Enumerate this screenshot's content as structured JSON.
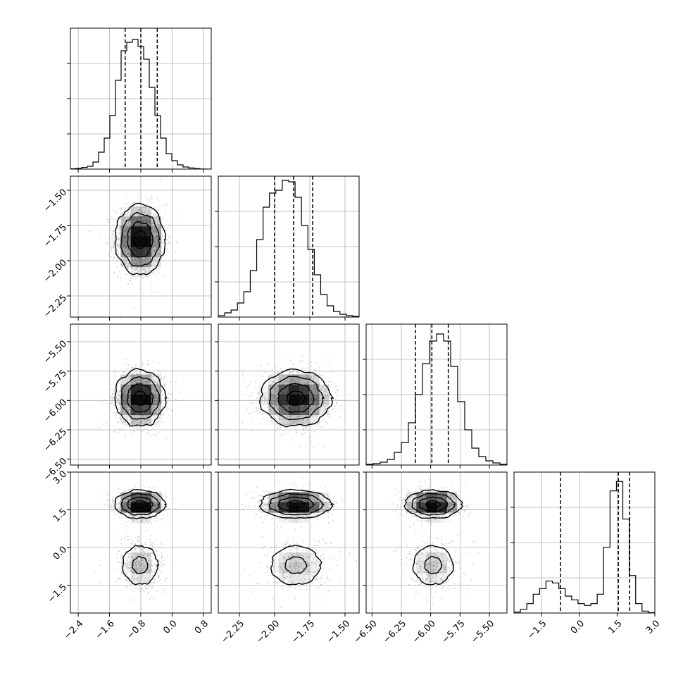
{
  "chart_data": {
    "type": "corner",
    "title": "",
    "parameters": [
      {
        "range": [
          -2.6,
          1.0
        ],
        "ticks": [
          -2.4,
          -1.6,
          -0.8,
          0.0,
          0.8
        ],
        "tick_labels": [
          "−2.4",
          "−1.6",
          "−0.8",
          "0.0",
          "0.8"
        ],
        "mean": -0.82,
        "sd": 0.32,
        "quantiles": [
          -1.2,
          -0.8,
          -0.38
        ],
        "hist_heights": [
          0.002,
          0.005,
          0.012,
          0.02,
          0.05,
          0.12,
          0.22,
          0.38,
          0.63,
          0.84,
          0.9,
          0.92,
          0.87,
          0.78,
          0.58,
          0.38,
          0.22,
          0.11,
          0.06,
          0.03,
          0.015,
          0.008,
          0.004,
          0.001,
          0.0
        ],
        "hist_ylim": 1.0
      },
      {
        "range": [
          -2.4,
          -1.4
        ],
        "ticks": [
          -2.25,
          -2.0,
          -1.75,
          -1.5
        ],
        "tick_labels": [
          "−2.25",
          "−2.00",
          "−1.75",
          "−1.50"
        ],
        "mean": -1.85,
        "sd": 0.125,
        "quantiles": [
          -2.0,
          -1.865,
          -1.73
        ],
        "hist_heights": [
          0.01,
          0.03,
          0.05,
          0.1,
          0.18,
          0.33,
          0.55,
          0.78,
          0.88,
          0.9,
          0.97,
          0.96,
          0.85,
          0.65,
          0.48,
          0.3,
          0.16,
          0.08,
          0.04,
          0.02,
          0.01,
          0.005
        ],
        "hist_ylim": 1.0
      },
      {
        "range": [
          -6.55,
          -5.35
        ],
        "ticks": [
          -6.5,
          -6.25,
          -6.0,
          -5.75,
          -5.5
        ],
        "tick_labels": [
          "−6.50",
          "−6.25",
          "−6.00",
          "−5.75",
          "−5.50"
        ],
        "mean": -5.98,
        "sd": 0.12,
        "quantiles": [
          -6.13,
          -5.99,
          -5.85
        ],
        "hist_heights": [
          0.005,
          0.01,
          0.02,
          0.04,
          0.09,
          0.16,
          0.3,
          0.5,
          0.72,
          0.88,
          0.93,
          0.88,
          0.7,
          0.45,
          0.25,
          0.12,
          0.06,
          0.03,
          0.015,
          0.005
        ],
        "hist_ylim": 1.0
      },
      {
        "range": [
          -2.6,
          3.0
        ],
        "ticks": [
          -1.5,
          0.0,
          1.5,
          3.0
        ],
        "tick_labels": [
          "−1.5",
          "0.0",
          "1.5",
          "3.0"
        ],
        "quantiles": [
          -0.75,
          1.55,
          2.0
        ],
        "hist_heights": [
          0.005,
          0.02,
          0.05,
          0.1,
          0.13,
          0.17,
          0.16,
          0.13,
          0.09,
          0.07,
          0.05,
          0.04,
          0.05,
          0.1,
          0.35,
          0.65,
          0.7,
          0.5,
          0.2,
          0.05,
          0.01,
          0.002
        ],
        "hist_ylim": 0.75,
        "modes": [
          {
            "mean": -0.7,
            "sd": 0.55,
            "weight": 0.35
          },
          {
            "mean": 1.72,
            "sd": 0.28,
            "weight": 0.65
          }
        ]
      }
    ],
    "y_axis_tick_labels": {
      "1": [
        "−2.25",
        "−2.00",
        "−1.75",
        "−1.50"
      ],
      "2": [
        "−6.50",
        "−6.25",
        "−6.00",
        "−5.75",
        "−5.50"
      ],
      "3": [
        "−1.5",
        "0.0",
        "1.5",
        "3.0"
      ]
    },
    "y_axis_ticks": {
      "1": [
        -2.25,
        -2.0,
        -1.75,
        -1.5
      ],
      "2": [
        -6.5,
        -6.25,
        -6.0,
        -5.75,
        -5.5
      ],
      "3": [
        -1.5,
        0.0,
        1.5,
        3.0
      ]
    },
    "grid": true,
    "colors": {
      "line": "#000000",
      "scatter": "#b0b0b0",
      "grid": "#b0b0b0",
      "density": "#000000"
    }
  }
}
